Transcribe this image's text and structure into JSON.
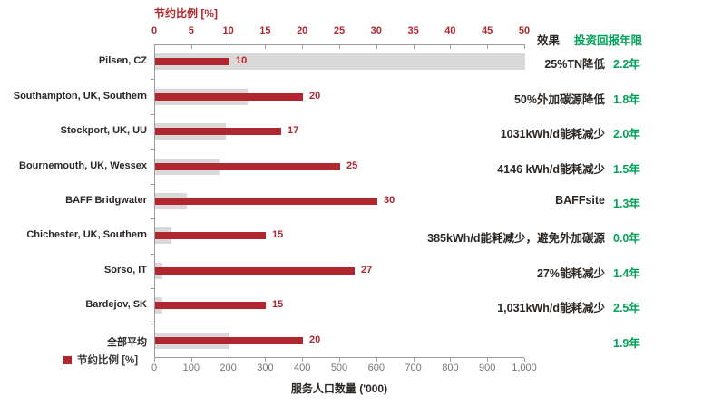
{
  "chart_data": {
    "type": "bar",
    "orientation": "horizontal",
    "top_axis": {
      "title": "节约比例 [%]",
      "ticks": [
        "0",
        "5",
        "10",
        "15",
        "20",
        "25",
        "30",
        "35",
        "40",
        "45",
        "50"
      ],
      "min": 0,
      "max": 50
    },
    "bottom_axis": {
      "title": "服务人口数量 ('000)",
      "ticks": [
        "0",
        "100",
        "200",
        "300",
        "400",
        "500",
        "600",
        "700",
        "800",
        "900",
        "1,000"
      ],
      "min": 0,
      "max": 1000
    },
    "right_columns": {
      "effect_header": "效果",
      "payback_header": "投资回报年限"
    },
    "legend": {
      "label": "节约比例 [%]"
    },
    "series_meta": [
      {
        "name": "节约比例 [%]",
        "color": "#b0272f"
      },
      {
        "name": "服务人口数量 ('000)",
        "color": "#d9d9d9"
      }
    ],
    "rows": [
      {
        "label": "Pilsen, CZ",
        "saving_pct": 10,
        "population_k": 1000,
        "effect": "25%TN降低",
        "payback": "2.2年"
      },
      {
        "label": "Southampton, UK, Southern",
        "saving_pct": 20,
        "population_k": 250,
        "effect": "50%外加碳源降低",
        "payback": "1.8年"
      },
      {
        "label": "Stockport, UK, UU",
        "saving_pct": 17,
        "population_k": 190,
        "effect": "1031kWh/d能耗减少",
        "payback": "2.0年"
      },
      {
        "label": "Bournemouth, UK, Wessex",
        "saving_pct": 25,
        "population_k": 175,
        "effect": "4146 kWh/d能耗减少",
        "payback": "1.5年"
      },
      {
        "label": "BAFF Bridgwater",
        "saving_pct": 30,
        "population_k": 85,
        "effect": "BAFFsite",
        "payback": "1.3年"
      },
      {
        "label": "Chichester, UK, Southern",
        "saving_pct": 15,
        "population_k": 45,
        "effect": "385kWh/d能耗减少，避免外加碳源",
        "payback": "0.0年"
      },
      {
        "label": "Sorso, IT",
        "saving_pct": 27,
        "population_k": 20,
        "effect": "27%能耗减少",
        "payback": "1.4年"
      },
      {
        "label": "Bardejov, SK",
        "saving_pct": 15,
        "population_k": 20,
        "effect": "1,031kWh/d能耗减少",
        "payback": "2.5年"
      },
      {
        "label": "全部平均",
        "saving_pct": 20,
        "population_k": 200,
        "effect": "",
        "payback": "1.9年"
      }
    ],
    "colors": {
      "saving_bar": "#b0272f",
      "population_bar": "#d9d9d9",
      "payback_green": "#00a357",
      "axis": "#9d9d9d"
    }
  }
}
